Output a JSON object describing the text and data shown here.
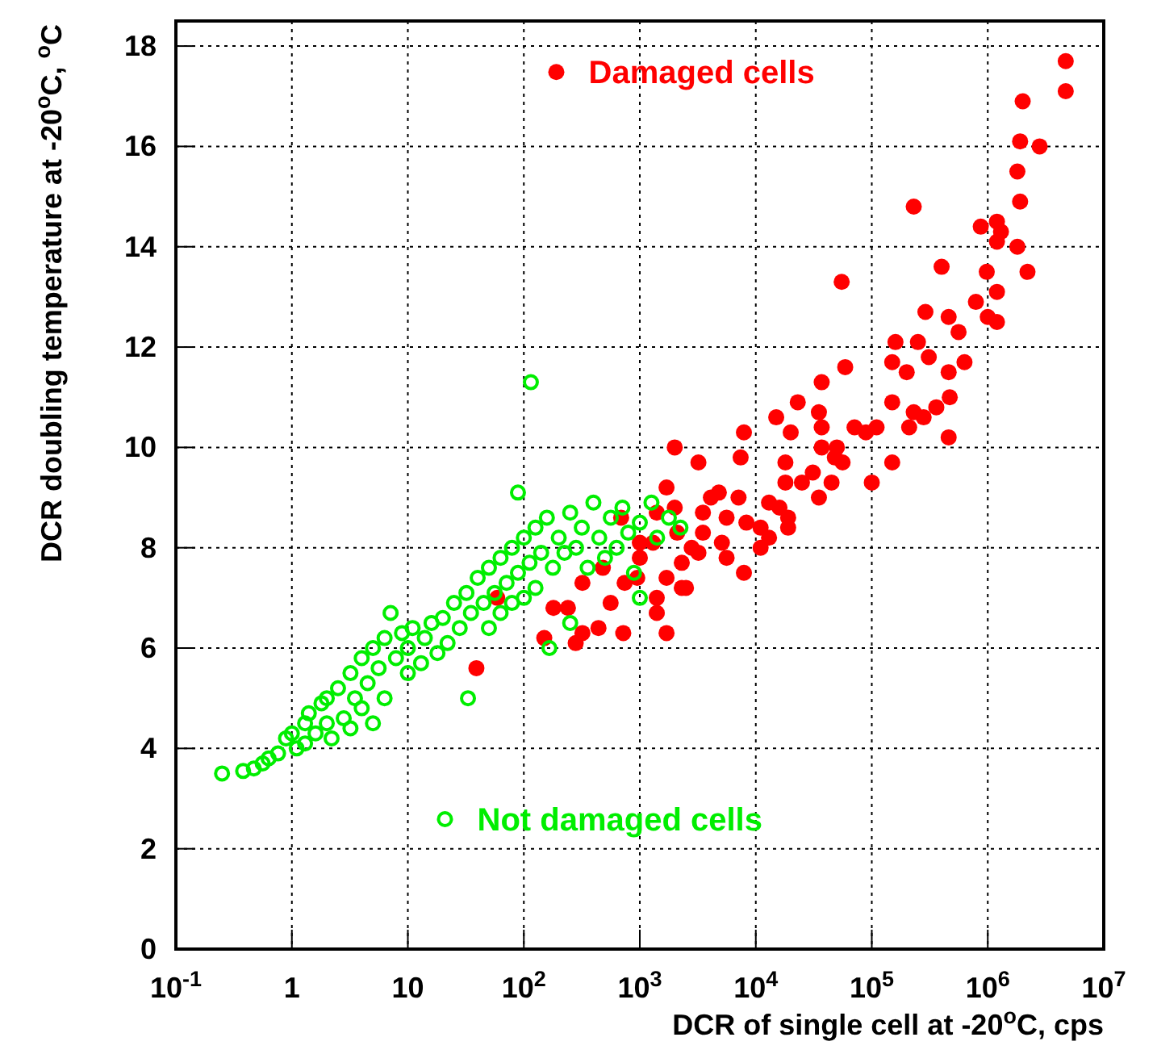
{
  "chart_data": {
    "type": "scatter",
    "xlabel": "DCR of single cell at -20$^{o}$C, cps",
    "ylabel": "DCR doubling temperature at -20$^{o}$C, $^{o}$C",
    "log": "x",
    "grid": true,
    "legend": "top",
    "marker": "circle",
    "xlim": [
      0.1,
      10000000
    ],
    "ylim": [
      0,
      18.5
    ],
    "xticks": [
      {
        "value": 0.1,
        "label": "10$^{-1}$"
      },
      1,
      10,
      {
        "value": 100,
        "label": "10$^{2}$"
      },
      {
        "value": 1000,
        "label": "10$^{3}$"
      },
      {
        "value": 10000,
        "label": "10$^{4}$"
      },
      {
        "value": 100000,
        "label": "10$^{5}$"
      },
      {
        "value": 1000000,
        "label": "10$^{6}$"
      },
      {
        "value": 10000000,
        "label": "10$^{7}$"
      }
    ],
    "yticks": [
      0,
      2,
      4,
      6,
      8,
      10,
      12,
      14,
      16,
      18
    ],
    "series": [
      {
        "name": "Damaged cells",
        "color": "#ff0000",
        "x": [
          4700000.0,
          4700000.0,
          2000000.0,
          1900000.0,
          2800000.0,
          1800000.0,
          1900000.0,
          230000.0,
          870000.0,
          1200000.0,
          1300000.0,
          1200000.0,
          1800000.0,
          400000.0,
          980000.0,
          2200000.0,
          1200000.0,
          790000.0,
          290000.0,
          460000.0,
          1000000.0,
          1200000.0,
          560000.0,
          160000.0,
          250000.0,
          55000.0,
          150000.0,
          200000.0,
          310000.0,
          460000.0,
          630000.0,
          59000.0,
          37000.0,
          23000.0,
          35000.0,
          15000.0,
          20000.0,
          37000.0,
          150000.0,
          470000.0,
          230000.0,
          210000.0,
          280000.0,
          360000.0,
          71000.0,
          110000.0,
          89000.0,
          460000.0,
          7900,
          7400,
          2000,
          3200,
          18000.0,
          37000.0,
          50000.0,
          48000.0,
          56000.0,
          150000.0,
          100000.0,
          18000.0,
          25000.0,
          31000.0,
          45000.0,
          35000.0,
          1700,
          4100,
          4800,
          7100,
          13000.0,
          16000.0,
          19000.0,
          19000.0,
          3500,
          5600,
          8300,
          11000.0,
          13000.0,
          11000.0,
          5100,
          5600,
          7900,
          3200,
          2300,
          2300,
          1700,
          1400,
          1700,
          1400,
          690,
          1400,
          1000,
          2100,
          480,
          320,
          740,
          950,
          59,
          180,
          240,
          560,
          440,
          320,
          150,
          280,
          720,
          39,
          2500,
          1000,
          1300,
          2800,
          3500,
          2000
        ],
        "values": [
          17.7,
          17.1,
          16.9,
          16.1,
          16.0,
          15.5,
          14.9,
          14.8,
          14.4,
          14.5,
          14.3,
          14.1,
          14.0,
          13.6,
          13.5,
          13.5,
          13.1,
          12.9,
          12.7,
          12.6,
          12.6,
          12.5,
          12.3,
          12.1,
          12.1,
          13.3,
          11.7,
          11.5,
          11.8,
          11.5,
          11.7,
          11.6,
          11.3,
          10.9,
          10.7,
          10.6,
          10.3,
          10.4,
          10.9,
          11.0,
          10.7,
          10.4,
          10.6,
          10.8,
          10.4,
          10.4,
          10.3,
          10.2,
          10.3,
          9.8,
          10.0,
          9.7,
          9.7,
          10.0,
          10.0,
          9.8,
          9.7,
          9.7,
          9.3,
          9.3,
          9.3,
          9.5,
          9.3,
          9.0,
          9.2,
          9.0,
          9.1,
          9.0,
          8.9,
          8.8,
          8.6,
          8.4,
          8.7,
          8.6,
          8.5,
          8.4,
          8.2,
          8.0,
          8.1,
          7.8,
          7.5,
          7.9,
          7.7,
          7.2,
          7.4,
          6.7,
          6.3,
          7.0,
          8.6,
          8.7,
          8.1,
          8.3,
          7.6,
          7.3,
          7.3,
          7.4,
          7.0,
          6.8,
          6.8,
          6.9,
          6.4,
          6.3,
          6.2,
          6.1,
          6.3,
          5.6,
          7.2,
          7.8,
          8.1,
          8.0,
          8.3,
          8.8
        ]
      },
      {
        "name": "Not damaged cells",
        "color": "#00ee00",
        "x": [
          0.25,
          0.38,
          0.47,
          0.56,
          0.63,
          0.76,
          0.89,
          1.0,
          1.1,
          1.3,
          1.3,
          1.4,
          1.6,
          1.8,
          2.0,
          2.0,
          2.2,
          2.5,
          2.8,
          3.2,
          3.2,
          3.5,
          4.0,
          4.0,
          4.5,
          5.0,
          5.0,
          5.6,
          6.3,
          6.3,
          7.1,
          7.9,
          8.9,
          10,
          10,
          11,
          13,
          14,
          16,
          18,
          20,
          22,
          25,
          28,
          32,
          33,
          35,
          40,
          45,
          50,
          50,
          56,
          63,
          63,
          71,
          79,
          79,
          89,
          89,
          100,
          100,
          115,
          112,
          126,
          126,
          141,
          158,
          166,
          178,
          200,
          224,
          251,
          251,
          282,
          316,
          355,
          398,
          447,
          501,
          562,
          631,
          708,
          794,
          891,
          1000,
          1000,
          1260,
          1410,
          1780,
          2240
        ],
        "values": [
          3.5,
          3.55,
          3.6,
          3.7,
          3.8,
          3.9,
          4.2,
          4.3,
          4.0,
          4.5,
          4.1,
          4.7,
          4.3,
          4.9,
          4.5,
          5.0,
          4.2,
          5.2,
          4.6,
          5.5,
          4.4,
          5.0,
          5.8,
          4.8,
          5.3,
          6.0,
          4.5,
          5.6,
          6.2,
          5.0,
          6.7,
          5.8,
          6.3,
          5.5,
          6.0,
          6.4,
          5.7,
          6.2,
          6.5,
          5.9,
          6.6,
          6.1,
          6.9,
          6.4,
          7.1,
          5.0,
          6.7,
          7.4,
          6.9,
          7.6,
          6.4,
          7.1,
          7.8,
          6.7,
          7.3,
          8.0,
          6.9,
          9.1,
          7.5,
          8.2,
          7.0,
          11.3,
          7.7,
          8.4,
          7.2,
          7.9,
          8.6,
          6.0,
          7.6,
          8.2,
          7.9,
          8.7,
          6.5,
          8.0,
          8.4,
          7.6,
          8.9,
          8.2,
          7.8,
          8.6,
          8.0,
          8.8,
          8.3,
          7.5,
          8.5,
          7.0,
          8.9,
          8.2,
          8.6,
          8.4
        ]
      }
    ]
  }
}
